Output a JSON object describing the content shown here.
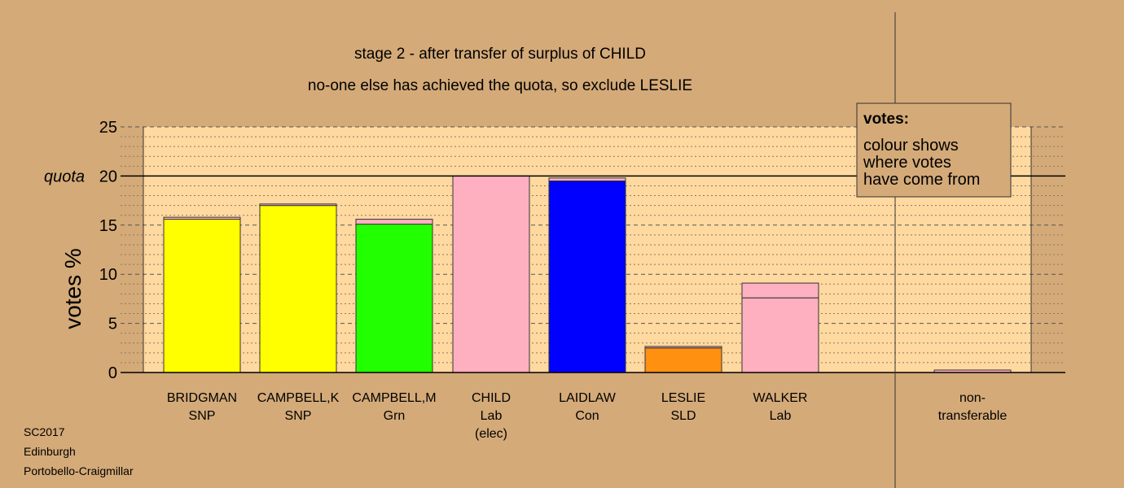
{
  "chart_data": {
    "type": "bar",
    "title_lines": [
      "stage 2 - after transfer of surplus of CHILD",
      "no-one else has achieved the quota, so exclude LESLIE"
    ],
    "ylabel": "votes %",
    "ylim": [
      0,
      25
    ],
    "yticks": [
      0,
      5,
      10,
      15,
      20,
      25
    ],
    "quota": 20,
    "quota_label": "quota",
    "categories": [
      {
        "lines": [
          "BRIDGMAN",
          "SNP"
        ],
        "segments": [
          {
            "value": 15.6,
            "color": "#ffff00"
          },
          {
            "value": 0.2,
            "color": "#ffb0c0"
          }
        ]
      },
      {
        "lines": [
          "CAMPBELL,K",
          "SNP"
        ],
        "segments": [
          {
            "value": 17.0,
            "color": "#ffff00"
          },
          {
            "value": 0.15,
            "color": "#ffb0c0"
          }
        ]
      },
      {
        "lines": [
          "CAMPBELL,M",
          "Grn"
        ],
        "segments": [
          {
            "value": 15.1,
            "color": "#22ff00"
          },
          {
            "value": 0.5,
            "color": "#ffb0c0"
          }
        ]
      },
      {
        "lines": [
          "CHILD",
          "Lab",
          "(elec)"
        ],
        "segments": [
          {
            "value": 20.0,
            "color": "#ffb0c0"
          }
        ]
      },
      {
        "lines": [
          "LAIDLAW",
          "Con"
        ],
        "segments": [
          {
            "value": 19.5,
            "color": "#0000ff"
          },
          {
            "value": 0.3,
            "color": "#ffb0c0"
          }
        ]
      },
      {
        "lines": [
          "LESLIE",
          "SLD"
        ],
        "segments": [
          {
            "value": 2.5,
            "color": "#ff9010"
          },
          {
            "value": 0.15,
            "color": "#ffb0c0"
          }
        ]
      },
      {
        "lines": [
          "WALKER",
          "Lab"
        ],
        "segments": [
          {
            "value": 7.6,
            "color": "#ffb0c0"
          },
          {
            "value": 1.5,
            "color": "#ffb0c0"
          }
        ]
      },
      {
        "lines": [
          "non-",
          "transferable"
        ],
        "segments": [
          {
            "value": 0.25,
            "color": "#ffb0c0"
          }
        ]
      }
    ],
    "legend": {
      "title": "votes:",
      "lines": [
        "colour shows",
        "where votes",
        "have come from"
      ]
    },
    "grid": true,
    "plot_bg": "#ffd9a0",
    "page_bg": "#d4aa78"
  },
  "footer": [
    "SC2017",
    "Edinburgh",
    "Portobello-Craigmillar"
  ]
}
